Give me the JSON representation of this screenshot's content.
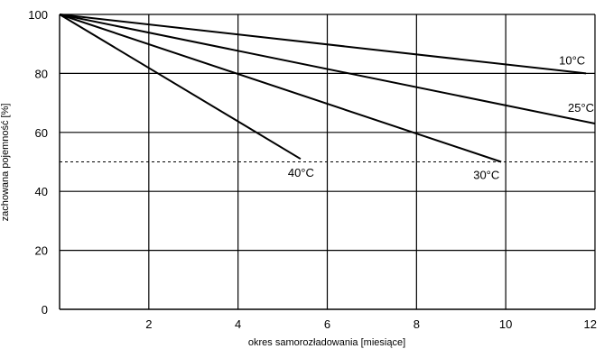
{
  "chart_data": {
    "type": "line",
    "title": "",
    "xlabel": "okres samorozładowania [miesiące]",
    "ylabel": "zachowana pojemność [%]",
    "xlim": [
      0,
      12
    ],
    "ylim": [
      0,
      100
    ],
    "x_ticks": [
      2,
      4,
      6,
      8,
      10,
      12
    ],
    "x_tick_labels": [
      "2",
      "4",
      "6",
      "8",
      "10",
      "12"
    ],
    "y_ticks": [
      0,
      20,
      40,
      60,
      80,
      100
    ],
    "y_tick_labels": [
      "0",
      "20",
      "40",
      "60",
      "80",
      "100"
    ],
    "grid": true,
    "reference_line": {
      "y": 50,
      "style": "dashed"
    },
    "series": [
      {
        "name": "10°C",
        "x": [
          0,
          11.8
        ],
        "y": [
          100,
          80
        ]
      },
      {
        "name": "25°C",
        "x": [
          0,
          12
        ],
        "y": [
          100,
          63
        ]
      },
      {
        "name": "30°C",
        "x": [
          0,
          9.9
        ],
        "y": [
          100,
          50
        ]
      },
      {
        "name": "40°C",
        "x": [
          0,
          5.4
        ],
        "y": [
          100,
          51
        ]
      }
    ]
  }
}
